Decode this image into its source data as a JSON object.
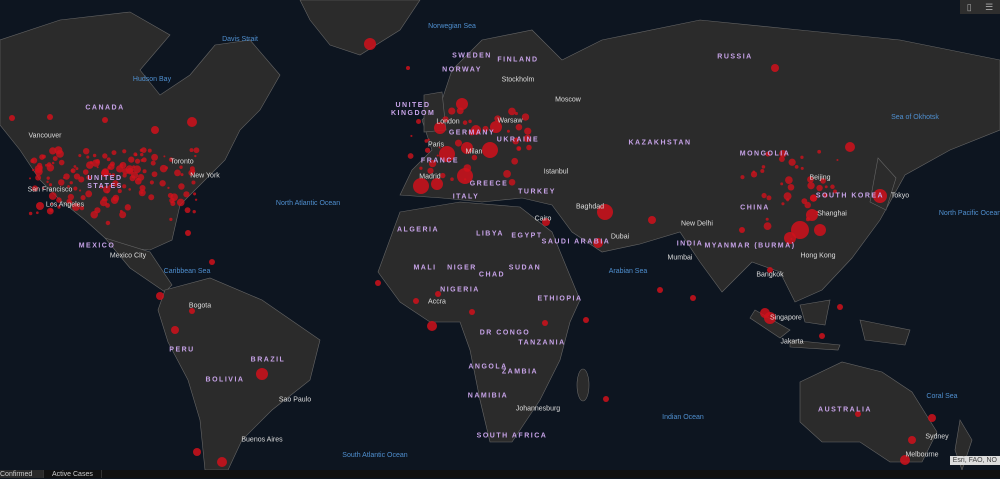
{
  "colors": {
    "ocean": "#0d1520",
    "land": "#2b2b2b",
    "borders": "#666666",
    "case_bubble": "#d0111b"
  },
  "toolbar": {
    "bookmark_icon": "bookmark-icon",
    "list_icon": "list-icon"
  },
  "tabs": [
    {
      "label": "Confirmed Cases",
      "active": true
    },
    {
      "label": "Active Cases",
      "active": false
    }
  ],
  "attribution": "Esri, FAO, NO",
  "labels": {
    "countries": [
      "CANADA",
      "UNITED STATES",
      "MEXICO",
      "PERU",
      "BRAZIL",
      "BOLIVIA",
      "NORWAY",
      "SWEDEN",
      "FINLAND",
      "UNITED KINGDOM",
      "GERMANY",
      "FRANCE",
      "ITALY",
      "UKRAINE",
      "GREECE",
      "TURKEY",
      "RUSSIA",
      "KAZAKHSTAN",
      "MONGOLIA",
      "CHINA",
      "SOUTH KOREA",
      "INDIA",
      "MYANMAR (BURMA)",
      "ALGERIA",
      "LIBYA",
      "EGYPT",
      "SAUDI ARABIA",
      "MALI",
      "NIGER",
      "CHAD",
      "SUDAN",
      "NIGERIA",
      "ETHIOPIA",
      "DR CONGO",
      "TANZANIA",
      "ANGOLA",
      "ZAMBIA",
      "NAMIBIA",
      "SOUTH AFRICA",
      "AUSTRALIA"
    ],
    "cities": [
      "Vancouver",
      "San Francisco",
      "Los Angeles",
      "Toronto",
      "New York",
      "Mexico City",
      "Bogota",
      "Sao Paulo",
      "Buenos Aires",
      "London",
      "Paris",
      "Madrid",
      "Milan",
      "Stockholm",
      "Warsaw",
      "Moscow",
      "Istanbul",
      "Baghdad",
      "Cairo",
      "Dubai",
      "New Delhi",
      "Mumbai",
      "Bangkok",
      "Singapore",
      "Jakarta",
      "Hong Kong",
      "Shanghai",
      "Beijing",
      "Tokyo",
      "Accra",
      "Johannesburg",
      "Sydney",
      "Melbourne"
    ],
    "oceans": [
      "Davis Strait",
      "Hudson Bay",
      "Norwegian Sea",
      "North Atlantic Ocean",
      "Caribbean Sea",
      "Arabian Sea",
      "Sea of Okhotsk",
      "North Pacific Ocean",
      "Indian Ocean",
      "South Atlantic Ocean",
      "Coral Sea"
    ]
  }
}
